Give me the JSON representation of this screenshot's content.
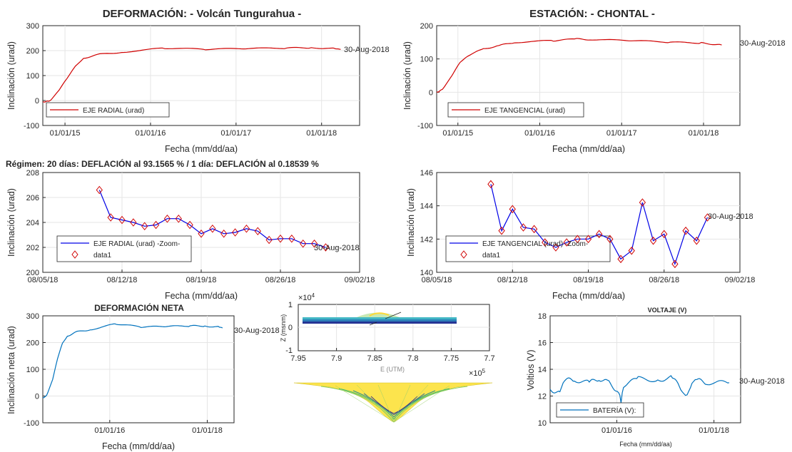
{
  "titles": {
    "left": "DEFORMACIÓN: - Volcán Tungurahua -",
    "right": "ESTACIÓN: - CHONTAL -",
    "regime": "Régimen: 20 días: DEFLACIÓN al 93.1565 % / 1 día: DEFLACIÓN al 0.18539 %",
    "net": "DEFORMACIÓN NETA",
    "voltage": "VOLTAJE (V)"
  },
  "labels": {
    "xdate": "Fecha (mm/dd/aa)",
    "y_incl": "Inclinación (urad)",
    "y_net": "Inclinación neta (urad)",
    "y_volt": "Voltios (V)",
    "end_date": "30-Aug-2018",
    "z_label": "Z (msnm)",
    "x_label_3d": "E (UTM)",
    "exp4": "×10",
    "exp4_sup": "4",
    "exp5": "×10",
    "exp5_sup": "5"
  },
  "legends": {
    "radial": "EJE RADIAL (urad)",
    "tangential": "EJE TANGENCIAL (urad)",
    "radial_zoom": "EJE RADIAL (urad) -Zoom-",
    "tangential_zoom": "EJE TANGENCIAL (urad) -Zoom-",
    "data1": "data1",
    "battery": "BATERÍA (V):"
  },
  "colors": {
    "red": "#d00000",
    "blue": "#0000e6",
    "teal": "#0072bd",
    "diamond": "#d00000",
    "grid": "#e5e5e5"
  },
  "chart_data": [
    {
      "id": "radial",
      "type": "line",
      "xticks": [
        "01/01/15",
        "01/01/16",
        "01/01/17",
        "01/01/18"
      ],
      "ylim": [
        -100,
        300
      ],
      "yticks": [
        -100,
        0,
        100,
        200,
        300
      ],
      "series": [
        {
          "name": "EJE RADIAL (urad)",
          "x": [
            0,
            0.05,
            0.1,
            0.2,
            0.3,
            0.4,
            0.5,
            0.7,
            1.0,
            1.5,
            2.0,
            2.5,
            3.0,
            3.3,
            3.6,
            3.66
          ],
          "values": [
            -5,
            -3,
            0,
            40,
            90,
            140,
            170,
            185,
            195,
            210,
            205,
            208,
            210,
            212,
            208,
            205
          ]
        }
      ],
      "x_range": [
        0,
        3.66
      ]
    },
    {
      "id": "tangential",
      "type": "line",
      "xticks": [
        "01/01/15",
        "01/01/16",
        "01/01/17",
        "01/01/18"
      ],
      "ylim": [
        -100,
        200
      ],
      "yticks": [
        -100,
        0,
        100,
        200
      ],
      "series": [
        {
          "name": "EJE TANGENCIAL (urad)",
          "x": [
            0,
            0.05,
            0.1,
            0.2,
            0.3,
            0.4,
            0.6,
            0.8,
            1.0,
            1.5,
            1.8,
            2.0,
            2.5,
            3.0,
            3.4,
            3.66
          ],
          "values": [
            0,
            5,
            15,
            50,
            90,
            110,
            130,
            140,
            150,
            155,
            160,
            158,
            155,
            150,
            148,
            142
          ]
        }
      ],
      "x_range": [
        0,
        3.66
      ]
    },
    {
      "id": "radial_zoom",
      "type": "line",
      "xticks": [
        "08/05/18",
        "08/12/18",
        "08/19/18",
        "08/26/18",
        "09/02/18"
      ],
      "xlim": [
        0,
        28
      ],
      "ylim": [
        200,
        208
      ],
      "yticks": [
        200,
        202,
        204,
        206,
        208
      ],
      "x": [
        5,
        6,
        7,
        8,
        9,
        10,
        11,
        12,
        13,
        14,
        15,
        16,
        17,
        18,
        19,
        20,
        21,
        22,
        23,
        24,
        25
      ],
      "series": [
        {
          "name": "EJE RADIAL (urad) -Zoom-",
          "values": [
            206.6,
            204.4,
            204.2,
            204.0,
            203.7,
            203.8,
            204.3,
            204.3,
            203.8,
            203.1,
            203.5,
            203.1,
            203.2,
            203.5,
            203.3,
            202.6,
            202.7,
            202.7,
            202.3,
            202.3,
            202.0
          ]
        }
      ]
    },
    {
      "id": "tangential_zoom",
      "type": "line",
      "xticks": [
        "08/05/18",
        "08/12/18",
        "08/19/18",
        "08/26/18",
        "09/02/18"
      ],
      "xlim": [
        0,
        28
      ],
      "ylim": [
        140,
        146
      ],
      "yticks": [
        140,
        142,
        144,
        146
      ],
      "x": [
        5,
        6,
        7,
        8,
        9,
        10,
        11,
        12,
        13,
        14,
        15,
        16,
        17,
        18,
        19,
        20,
        21,
        22,
        23,
        24,
        25
      ],
      "series": [
        {
          "name": "EJE TANGENCIAL (urad) -Zoom-",
          "values": [
            145.3,
            142.5,
            143.8,
            142.7,
            142.6,
            141.8,
            141.5,
            141.8,
            142.0,
            142.0,
            142.3,
            142.0,
            140.8,
            141.3,
            144.2,
            141.9,
            142.3,
            140.5,
            142.5,
            141.9,
            143.3
          ]
        }
      ]
    },
    {
      "id": "net",
      "type": "line",
      "xticks": [
        "01/01/16",
        "01/01/18"
      ],
      "ylim": [
        -100,
        300
      ],
      "yticks": [
        -100,
        0,
        100,
        200,
        300
      ],
      "x_range": [
        0,
        3.66
      ],
      "series": [
        {
          "name": "",
          "x": [
            0,
            0.05,
            0.1,
            0.2,
            0.3,
            0.4,
            0.5,
            0.7,
            1.0,
            1.5,
            2.0,
            2.5,
            3.0,
            3.3,
            3.6,
            3.66
          ],
          "values": [
            -5,
            -3,
            10,
            60,
            140,
            200,
            225,
            240,
            250,
            270,
            258,
            260,
            262,
            262,
            258,
            255
          ]
        }
      ]
    },
    {
      "id": "voltage",
      "type": "line",
      "xticks": [
        "01/01/16",
        "01/01/18"
      ],
      "ylim": [
        10,
        18
      ],
      "yticks": [
        10,
        12,
        14,
        16,
        18
      ],
      "x_range": [
        0,
        3.66
      ],
      "series": [
        {
          "name": "BATERÍA (V):",
          "x": [
            0,
            0.2,
            0.3,
            0.5,
            0.8,
            1.0,
            1.2,
            1.4,
            1.45,
            1.5,
            1.8,
            2.2,
            2.5,
            2.7,
            2.8,
            2.9,
            3.0,
            3.2,
            3.66
          ],
          "values": [
            12.5,
            12.2,
            13.2,
            13.2,
            13.0,
            13.3,
            13.0,
            12.3,
            11.6,
            12.8,
            13.3,
            13.2,
            13.4,
            12.4,
            12.0,
            12.8,
            13.2,
            13.0,
            13.0
          ]
        }
      ]
    },
    {
      "id": "surface",
      "type": "other",
      "xticks": [
        "7.95",
        "7.9",
        "7.85",
        "7.8",
        "7.75",
        "7.7"
      ],
      "yticks": [
        "-1",
        "0",
        "1"
      ]
    }
  ]
}
